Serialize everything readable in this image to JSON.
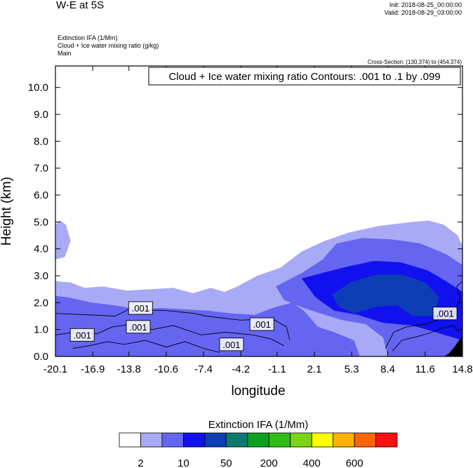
{
  "header": {
    "title": "W-E at 5S",
    "init": "Init: 2018-08-25_00:00:00",
    "valid": "Valid: 2018-08-29_03:00:00",
    "subtitle_lines": [
      "Extinction IFA   (1/Mm)",
      "Cloud + Ice water mixing ratio   (g/kg)",
      "Main"
    ],
    "cross_section": "Cross-Section: (130,374) to (454,374)"
  },
  "chart_data": {
    "type": "heatmap",
    "title": "W-E at 5S",
    "xlabel": "longitude",
    "ylabel": "Height (km)",
    "xlim": [
      -20.1,
      14.8
    ],
    "ylim": [
      0.0,
      10.8
    ],
    "xticks": [
      "-20.1",
      "-16.9",
      "-13.8",
      "-10.6",
      "-7.4",
      "-4.2",
      "-1.1",
      "2.1",
      "5.3",
      "8.4",
      "11.6",
      "14.8"
    ],
    "xtick_values": [
      -20.1,
      -16.9,
      -13.8,
      -10.6,
      -7.4,
      -4.2,
      -1.1,
      2.1,
      5.3,
      8.4,
      11.6,
      14.8
    ],
    "yticks": [
      "0.0",
      "1.0",
      "2.0",
      "3.0",
      "4.0",
      "5.0",
      "6.0",
      "7.0",
      "8.0",
      "9.0",
      "10.0"
    ],
    "ytick_values": [
      0,
      1,
      2,
      3,
      4,
      5,
      6,
      7,
      8,
      9,
      10
    ],
    "contour_note": "Cloud + Ice water mixing ratio Contours: .001 to .1 by .099",
    "contour_labels": [
      {
        "text": ".001",
        "x": -12.8,
        "y": 1.8
      },
      {
        "text": ".001",
        "x": -13.0,
        "y": 1.1
      },
      {
        "text": ".001",
        "x": -17.8,
        "y": 0.8
      },
      {
        "text": ".001",
        "x": -5.0,
        "y": 0.45
      },
      {
        "text": ".001",
        "x": -2.4,
        "y": 1.2
      },
      {
        "text": ".001",
        "x": 13.3,
        "y": 1.6
      }
    ],
    "field_regions": [
      {
        "level": 1,
        "polygon": [
          [
            -20.1,
            0
          ],
          [
            14.8,
            0
          ],
          [
            14.8,
            4.1
          ],
          [
            14.4,
            4.5
          ],
          [
            13.2,
            4.9
          ],
          [
            11.9,
            5.05
          ],
          [
            10.5,
            5.0
          ],
          [
            7.6,
            4.85
          ],
          [
            5.0,
            4.6
          ],
          [
            3.0,
            4.3
          ],
          [
            1.0,
            3.9
          ],
          [
            -0.8,
            3.3
          ],
          [
            -2.8,
            3.0
          ],
          [
            -4.5,
            2.6
          ],
          [
            -5.6,
            2.4
          ],
          [
            -6.8,
            2.55
          ],
          [
            -8.3,
            2.35
          ],
          [
            -10.0,
            2.55
          ],
          [
            -12.0,
            2.5
          ],
          [
            -14.0,
            2.45
          ],
          [
            -16.0,
            2.6
          ],
          [
            -17.6,
            2.55
          ],
          [
            -18.8,
            2.75
          ],
          [
            -20.1,
            2.8
          ]
        ]
      },
      {
        "level": 1,
        "polygon": [
          [
            -20.1,
            4.9
          ],
          [
            -19.7,
            5.05
          ],
          [
            -19.2,
            4.9
          ],
          [
            -18.8,
            4.3
          ],
          [
            -19.3,
            3.7
          ],
          [
            -20.1,
            3.6
          ]
        ]
      },
      {
        "level": 2,
        "polygon": [
          [
            -20.1,
            0
          ],
          [
            6.0,
            0
          ],
          [
            5.5,
            0.6
          ],
          [
            3.8,
            0.9
          ],
          [
            2.4,
            1.1
          ],
          [
            1.2,
            1.7
          ],
          [
            0.2,
            2.0
          ],
          [
            -1.5,
            1.8
          ],
          [
            -3.0,
            1.55
          ],
          [
            -5.0,
            1.6
          ],
          [
            -7.0,
            1.7
          ],
          [
            -9.0,
            1.75
          ],
          [
            -11.0,
            1.8
          ],
          [
            -13.0,
            1.75
          ],
          [
            -15.0,
            1.9
          ],
          [
            -17.0,
            2.0
          ],
          [
            -19.0,
            2.2
          ],
          [
            -20.1,
            2.25
          ]
        ]
      },
      {
        "level": 2,
        "polygon": [
          [
            -1.2,
            2.6
          ],
          [
            1.0,
            3.1
          ],
          [
            2.8,
            3.6
          ],
          [
            4.0,
            4.2
          ],
          [
            6.2,
            4.4
          ],
          [
            8.8,
            4.35
          ],
          [
            11.2,
            4.2
          ],
          [
            13.4,
            3.8
          ],
          [
            14.8,
            3.4
          ],
          [
            14.8,
            0
          ],
          [
            8.4,
            0
          ],
          [
            8.0,
            0.7
          ],
          [
            6.5,
            1.2
          ],
          [
            4.5,
            1.35
          ],
          [
            3.0,
            1.55
          ],
          [
            1.2,
            1.8
          ],
          [
            -0.5,
            2.1
          ]
        ]
      },
      {
        "level": 3,
        "polygon": [
          [
            1.0,
            2.9
          ],
          [
            3.2,
            3.15
          ],
          [
            5.0,
            3.35
          ],
          [
            7.2,
            3.55
          ],
          [
            9.5,
            3.5
          ],
          [
            11.8,
            3.2
          ],
          [
            13.4,
            2.8
          ],
          [
            14.8,
            2.4
          ],
          [
            14.8,
            0.6
          ],
          [
            12.5,
            0.9
          ],
          [
            10.5,
            1.15
          ],
          [
            8.0,
            1.25
          ],
          [
            5.8,
            1.55
          ],
          [
            3.8,
            1.7
          ],
          [
            2.2,
            2.2
          ]
        ]
      },
      {
        "level": 4,
        "polygon": [
          [
            3.6,
            2.3
          ],
          [
            5.2,
            2.75
          ],
          [
            7.4,
            3.05
          ],
          [
            9.6,
            3.05
          ],
          [
            11.6,
            2.75
          ],
          [
            12.8,
            2.2
          ],
          [
            12.3,
            1.5
          ],
          [
            10.6,
            1.5
          ],
          [
            9.2,
            1.9
          ],
          [
            7.4,
            1.85
          ],
          [
            5.5,
            1.6
          ],
          [
            4.2,
            1.85
          ]
        ]
      },
      {
        "level": 5,
        "polygon": [
          [
            13.6,
            0.1
          ],
          [
            14.1,
            0.35
          ],
          [
            14.5,
            0.6
          ],
          [
            14.8,
            0.75
          ],
          [
            14.8,
            0
          ],
          [
            13.2,
            0
          ]
        ]
      }
    ],
    "colorbar": {
      "label": "Extinction IFA  (1/Mm)",
      "labels": [
        "2",
        "10",
        "50",
        "200",
        "400",
        "600"
      ],
      "colors": [
        "#ffffff",
        "#a8aaf5",
        "#6565f2",
        "#1111ef",
        "#0d3eb6",
        "#0d7a72",
        "#0ba11d",
        "#2fbd16",
        "#7bd414",
        "#ffff00",
        "#ffb100",
        "#ff6500",
        "#ff1010"
      ]
    },
    "level_colors": [
      "#ffffff",
      "#a8aaf5",
      "#6565f2",
      "#1111ef",
      "#0d3eb6",
      "#000000"
    ]
  }
}
